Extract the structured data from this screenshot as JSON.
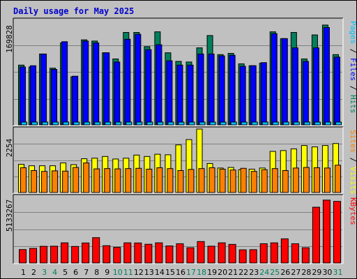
{
  "chart_data": {
    "type": "bar",
    "title": "Daily usage for May 2025",
    "categories": [
      "1",
      "2",
      "3",
      "4",
      "5",
      "6",
      "7",
      "8",
      "9",
      "10",
      "11",
      "12",
      "13",
      "14",
      "15",
      "16",
      "17",
      "18",
      "19",
      "20",
      "21",
      "22",
      "23",
      "24",
      "25",
      "26",
      "27",
      "28",
      "29",
      "30",
      "31"
    ],
    "weekend_days": [
      "3",
      "4",
      "10",
      "11",
      "17",
      "18",
      "24",
      "25",
      "31"
    ],
    "colors": {
      "hits": "#00805c",
      "files": "#0000ff",
      "pages": "#00c0ff",
      "visits": "#ffff00",
      "sites": "#ff8000",
      "kbytes": "#ff0000",
      "weekday_label": "#000000",
      "weekend_label": "#00805c",
      "panel_bg": "#c0c0c0"
    },
    "panels": [
      {
        "id": "hits-files-pages",
        "max_label": "169828",
        "max": 169828,
        "legend": [
          {
            "text": "Pages",
            "color": "#00c0ff"
          },
          {
            "text": " / ",
            "color": "#000000"
          },
          {
            "text": "Files",
            "color": "#0000ff"
          },
          {
            "text": " / ",
            "color": "#000000"
          },
          {
            "text": "Hits",
            "color": "#00805c"
          }
        ],
        "series": [
          {
            "name": "Hits",
            "values": [
              97000,
              94000,
              115000,
              92000,
              133000,
              78000,
              138000,
              136000,
              117000,
              107000,
              150000,
              150000,
              127000,
              151000,
              117000,
              103000,
              102000,
              125000,
              145000,
              114000,
              116000,
              99000,
              96000,
              100000,
              151000,
              140000,
              150000,
              107000,
              146000,
              162000,
              114000
            ]
          },
          {
            "name": "Files",
            "values": [
              94000,
              96000,
              115000,
              90000,
              135000,
              79000,
              136000,
              133000,
              117000,
              102000,
              139000,
              147000,
              122000,
              130000,
              104000,
              97000,
              97000,
              115000,
              115000,
              112000,
              113000,
              95000,
              96000,
              101000,
              148000,
              140000,
              125000,
              103000,
              125000,
              158000,
              110000
            ]
          },
          {
            "name": "Pages",
            "values": [
              4500,
              4500,
              4500,
              4500,
              4500,
              4500,
              4500,
              4500,
              4500,
              4500,
              4500,
              4500,
              4500,
              4500,
              4500,
              4500,
              4500,
              4500,
              4500,
              4500,
              4500,
              4500,
              4500,
              4500,
              4500,
              4500,
              4500,
              4500,
              4500,
              4500,
              4500
            ]
          }
        ]
      },
      {
        "id": "visits-sites",
        "max_label": "2254",
        "max": 2254,
        "legend": [
          {
            "text": "Sites",
            "color": "#ff8000"
          },
          {
            "text": " / ",
            "color": "#000000"
          },
          {
            "text": "Visits",
            "color": "#ffff00"
          }
        ],
        "series": [
          {
            "name": "Visits",
            "values": [
              1000,
              950,
              950,
              950,
              1050,
              990,
              1200,
              1220,
              1280,
              1190,
              1220,
              1330,
              1280,
              1360,
              1340,
              1690,
              1880,
              2254,
              1030,
              870,
              890,
              810,
              830,
              870,
              1460,
              1490,
              1550,
              1670,
              1620,
              1670,
              1740
            ]
          },
          {
            "name": "Sites",
            "values": [
              880,
              780,
              750,
              770,
              760,
              890,
              1050,
              840,
              850,
              840,
              850,
              860,
              830,
              880,
              850,
              780,
              820,
              850,
              880,
              830,
              800,
              860,
              750,
              810,
              850,
              780,
              870,
              890,
              880,
              870,
              970
            ]
          }
        ]
      },
      {
        "id": "kbytes",
        "max_label": "5133267",
        "max": 5133267,
        "legend": [
          {
            "text": "KBytes",
            "color": "#ff0000"
          }
        ],
        "series": [
          {
            "name": "KBytes",
            "values": [
              1040000,
              1130000,
              1290000,
              1300000,
              1560000,
              1280000,
              1550000,
              1960000,
              1340000,
              1210000,
              1560000,
              1550000,
              1450000,
              1560000,
              1320000,
              1490000,
              1180000,
              1660000,
              1300000,
              1560000,
              1440000,
              1020000,
              1030000,
              1490000,
              1560000,
              1870000,
              1490000,
              1180000,
              4320000,
              4870000,
              4770000
            ]
          }
        ]
      }
    ]
  }
}
